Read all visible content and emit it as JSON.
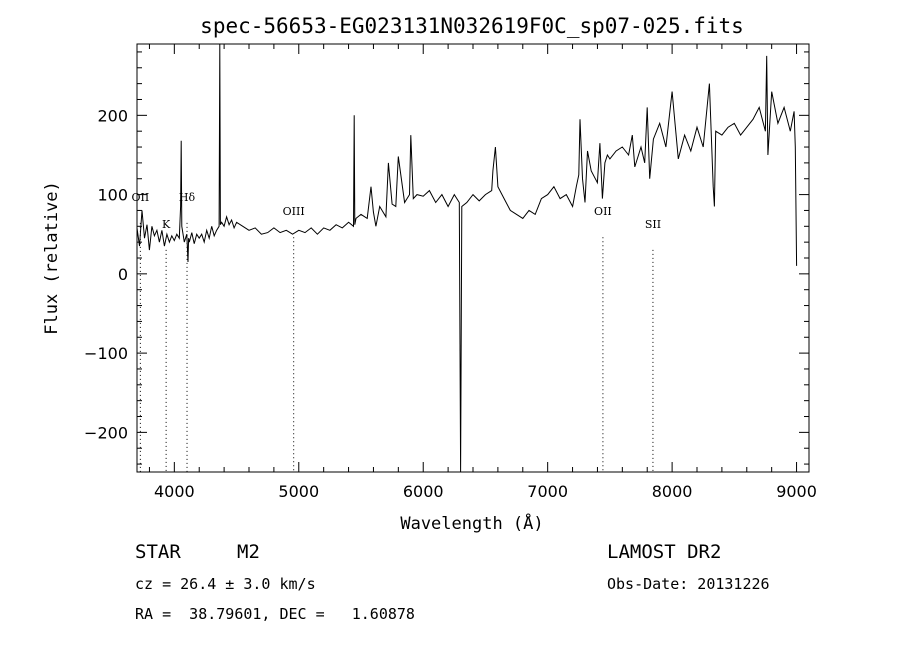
{
  "chart_data": {
    "type": "line",
    "title": "spec-56653-EG023131N032619F0C_sp07-025.fits",
    "xlabel": "Wavelength (Å)",
    "ylabel": "Flux (relative)",
    "xlim": [
      3700,
      9100
    ],
    "ylim": [
      -250,
      290
    ],
    "x_ticks": [
      4000,
      5000,
      6000,
      7000,
      8000,
      9000
    ],
    "y_ticks": [
      -200,
      -100,
      0,
      100,
      200
    ],
    "y_tick_labels": [
      "−200",
      "−100",
      "0",
      "100",
      "200"
    ],
    "grid": false,
    "line_markers": [
      {
        "label": "OII",
        "x": 3727,
        "y_label": 92
      },
      {
        "label": "K",
        "x": 3934,
        "y_label": 58
      },
      {
        "label": "Hδ",
        "x": 4102,
        "y_label": 92
      },
      {
        "label": "OIII",
        "x": 4959,
        "y_label": 74
      },
      {
        "label": "OII",
        "x": 7444,
        "y_label": 74
      },
      {
        "label": "SII",
        "x": 7846,
        "y_label": 58
      }
    ],
    "series": [
      {
        "values_x": [
          3700,
          3720,
          3740,
          3760,
          3780,
          3800,
          3820,
          3840,
          3860,
          3880,
          3900,
          3920,
          3940,
          3960,
          3980,
          4000,
          4020,
          4040,
          4050,
          4055,
          4060,
          4080,
          4100,
          4110,
          4115,
          4120,
          4140,
          4160,
          4180,
          4200,
          4220,
          4240,
          4260,
          4280,
          4300,
          4320,
          4340,
          4360,
          4365,
          4370,
          4380,
          4400,
          4420,
          4440,
          4460,
          4480,
          4500,
          4550,
          4600,
          4650,
          4700,
          4750,
          4800,
          4850,
          4900,
          4950,
          5000,
          5050,
          5100,
          5150,
          5200,
          5250,
          5300,
          5350,
          5400,
          5440,
          5445,
          5450,
          5460,
          5500,
          5550,
          5580,
          5600,
          5620,
          5650,
          5700,
          5720,
          5750,
          5780,
          5800,
          5850,
          5890,
          5900,
          5920,
          5950,
          6000,
          6050,
          6100,
          6150,
          6200,
          6250,
          6290,
          6300,
          6310,
          6350,
          6400,
          6450,
          6500,
          6550,
          6560,
          6580,
          6600,
          6650,
          6700,
          6750,
          6800,
          6850,
          6900,
          6950,
          7000,
          7050,
          7100,
          7150,
          7200,
          7230,
          7250,
          7260,
          7280,
          7300,
          7320,
          7350,
          7400,
          7420,
          7440,
          7460,
          7480,
          7500,
          7550,
          7600,
          7650,
          7680,
          7700,
          7750,
          7780,
          7800,
          7820,
          7850,
          7900,
          7950,
          8000,
          8050,
          8100,
          8150,
          8200,
          8250,
          8300,
          8330,
          8340,
          8350,
          8400,
          8450,
          8500,
          8550,
          8600,
          8650,
          8700,
          8750,
          8760,
          8770,
          8800,
          8850,
          8900,
          8950,
          8980,
          8990,
          9000
        ],
        "values": [
          58,
          35,
          80,
          45,
          62,
          30,
          60,
          48,
          55,
          40,
          55,
          35,
          50,
          40,
          48,
          42,
          50,
          45,
          85,
          168,
          60,
          40,
          50,
          15,
          45,
          40,
          52,
          38,
          50,
          45,
          50,
          40,
          55,
          45,
          60,
          48,
          55,
          60,
          290,
          62,
          65,
          60,
          72,
          62,
          68,
          58,
          65,
          60,
          55,
          58,
          50,
          52,
          58,
          52,
          55,
          50,
          55,
          52,
          58,
          50,
          58,
          55,
          62,
          58,
          65,
          60,
          200,
          62,
          70,
          75,
          70,
          110,
          78,
          60,
          85,
          72,
          140,
          88,
          85,
          148,
          90,
          100,
          175,
          95,
          100,
          98,
          105,
          90,
          100,
          85,
          100,
          90,
          -250,
          85,
          90,
          100,
          92,
          100,
          105,
          130,
          160,
          110,
          95,
          80,
          75,
          70,
          80,
          75,
          95,
          100,
          110,
          95,
          100,
          85,
          110,
          125,
          195,
          120,
          90,
          155,
          130,
          115,
          165,
          95,
          140,
          150,
          145,
          155,
          160,
          150,
          175,
          135,
          160,
          140,
          210,
          120,
          170,
          190,
          160,
          230,
          145,
          175,
          155,
          185,
          160,
          240,
          110,
          85,
          180,
          175,
          185,
          190,
          175,
          185,
          195,
          210,
          180,
          275,
          150,
          230,
          190,
          210,
          180,
          205,
          160,
          10
        ]
      }
    ]
  },
  "info": {
    "object_type": "STAR",
    "subclass": "M2",
    "redshift_line": "cz = 26.4 ± 3.0 km/s",
    "coord_line": "RA =  38.79601, DEC =   1.60878",
    "survey": "LAMOST DR2",
    "obs_date": "Obs-Date: 20131226"
  }
}
